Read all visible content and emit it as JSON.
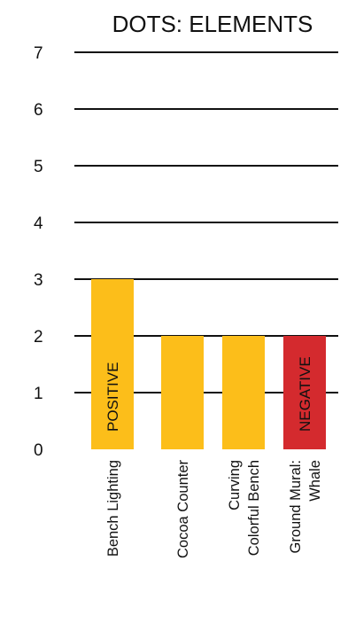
{
  "chart_data": {
    "type": "bar",
    "title": "DOTS: ELEMENTS",
    "xlabel": "",
    "ylabel": "",
    "ylim": [
      0,
      7
    ],
    "yticks": [
      "0",
      "1",
      "2",
      "3",
      "4",
      "5",
      "6",
      "7"
    ],
    "grid": true,
    "categories": [
      [
        "Bench Lighting"
      ],
      [
        "Cocoa Counter"
      ],
      [
        "Curving",
        "Colorful Bench"
      ],
      [
        "Ground Mural:",
        "Whale"
      ]
    ],
    "values": [
      3,
      2,
      2,
      2
    ],
    "bar_colors": [
      "#FCBE1A",
      "#FCBE1A",
      "#FCBE1A",
      "#D42A2E"
    ],
    "bar_labels": [
      "POSITIVE",
      "",
      "",
      "NEGATIVE"
    ]
  }
}
